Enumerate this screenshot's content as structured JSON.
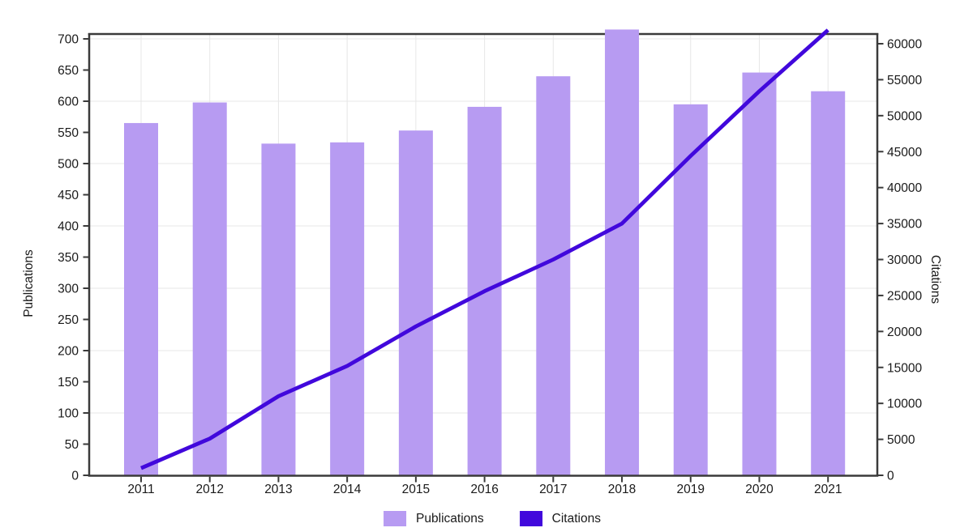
{
  "page": {
    "background": "#ffffff"
  },
  "chart_data": {
    "type": "combo-bar-line",
    "title": "",
    "categories": [
      "2011",
      "2012",
      "2013",
      "2014",
      "2015",
      "2016",
      "2017",
      "2018",
      "2019",
      "2020",
      "2021"
    ],
    "series": [
      {
        "name": "Publications",
        "type": "bar",
        "axis": "left",
        "color": "#b79bf2",
        "values": [
          565,
          598,
          532,
          534,
          553,
          591,
          640,
          715,
          595,
          646,
          616
        ]
      },
      {
        "name": "Citations",
        "type": "line",
        "axis": "right",
        "color": "#4108dc",
        "values": [
          1000,
          5100,
          11000,
          15200,
          20700,
          25600,
          30000,
          35000,
          44400,
          53400,
          61900
        ]
      }
    ],
    "left_axis": {
      "label": "Publications",
      "min": 0,
      "max": 700,
      "tick_step": 50,
      "ticks": [
        0,
        50,
        100,
        150,
        200,
        250,
        300,
        350,
        400,
        450,
        500,
        550,
        600,
        650,
        700
      ]
    },
    "right_axis": {
      "label": "Citations",
      "min": 0,
      "max": 60000,
      "tick_step": 5000,
      "ticks": [
        0,
        5000,
        10000,
        15000,
        20000,
        25000,
        30000,
        35000,
        40000,
        45000,
        50000,
        55000,
        60000
      ]
    },
    "grid": {
      "horizontal_every": 100,
      "vertical": "one-per-year",
      "color": "#e7e7e7"
    },
    "legend": {
      "position": "bottom-center",
      "items": [
        {
          "label": "Publications",
          "color": "#b79bf2"
        },
        {
          "label": "Citations",
          "color": "#4108dc"
        }
      ]
    },
    "frame_color": "#3a3a3a",
    "text_color": "#1a1a1a"
  }
}
